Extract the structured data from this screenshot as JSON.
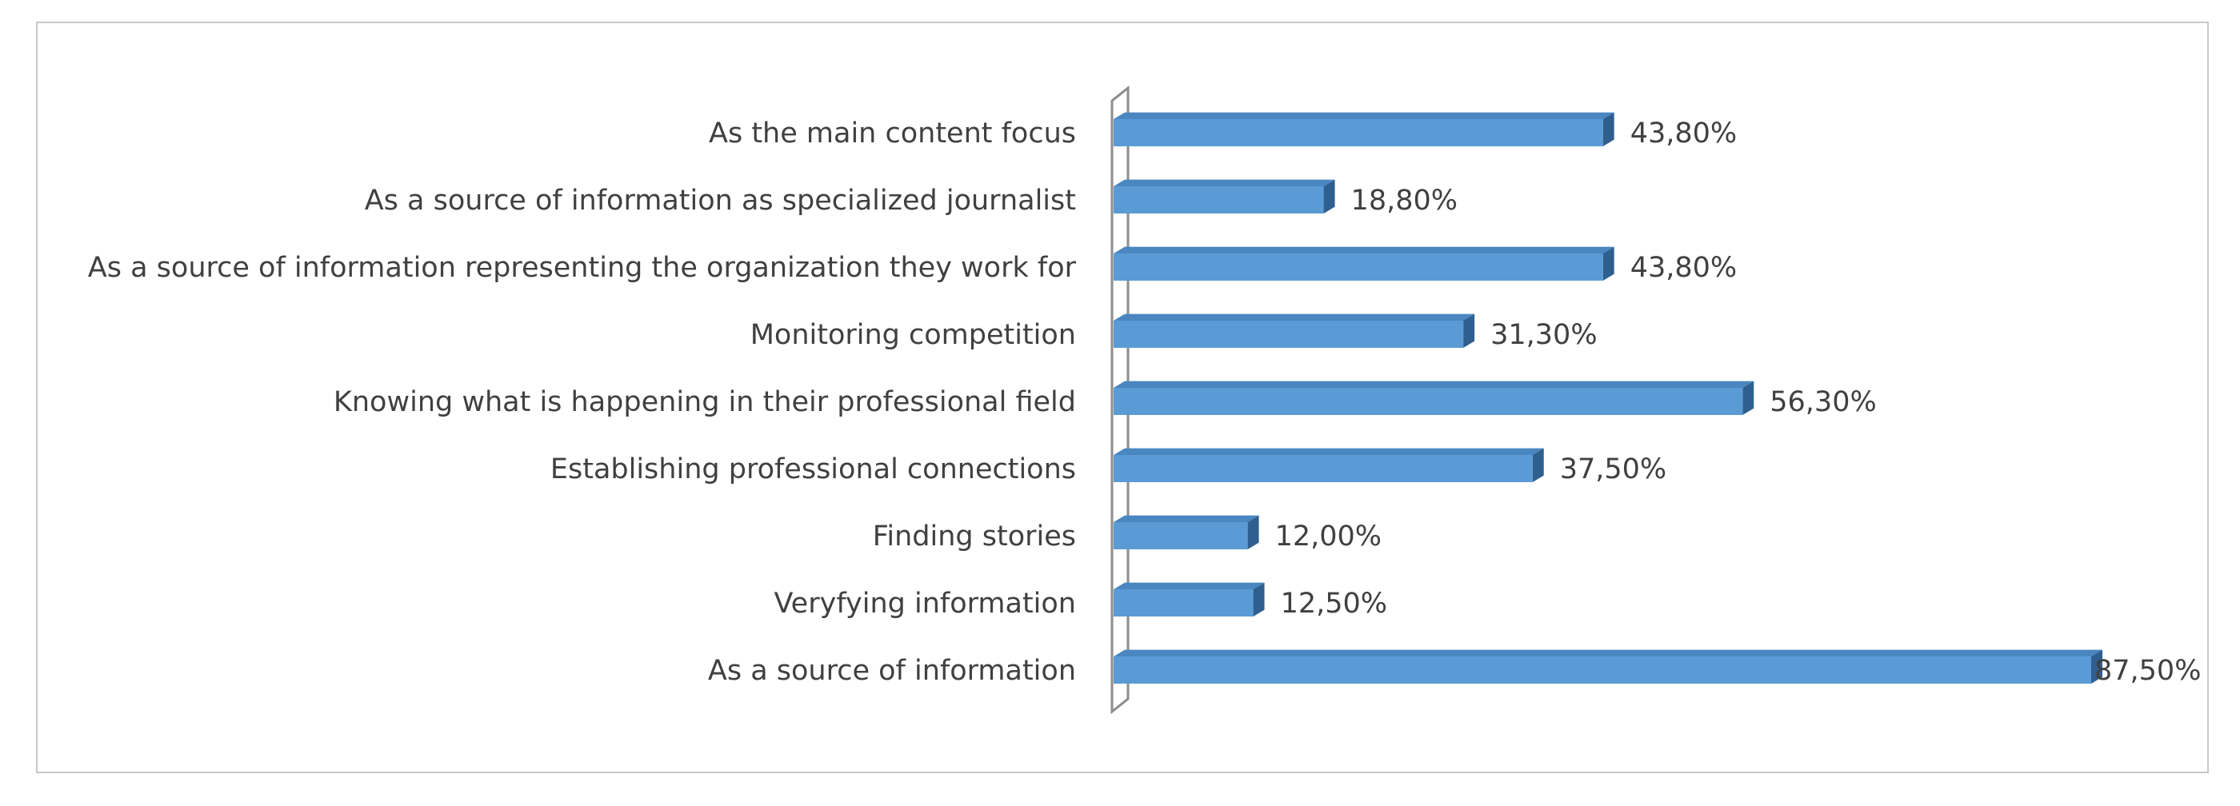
{
  "chart_data": {
    "type": "bar",
    "orientation": "horizontal",
    "style": "3d",
    "categories": [
      "As the main content focus",
      "As a source of information as specialized journalist",
      "As a source of information representing the organization they work for",
      "Monitoring competition",
      "Knowing what is happening in their professional field",
      "Establishing professional connections",
      "Finding stories",
      "Veryfying information",
      "As a source of information"
    ],
    "values": [
      43.8,
      18.8,
      43.8,
      31.3,
      56.3,
      37.5,
      12.0,
      12.5,
      87.5
    ],
    "value_labels": [
      "43,80%",
      "18,80%",
      "43,80%",
      "31,30%",
      "56,30%",
      "37,50%",
      "12,00%",
      "12,50%",
      "87,50%"
    ],
    "xlim": [
      0,
      87.5
    ],
    "grid": false,
    "legend": "none",
    "colors": {
      "bar_front": "#5b9bd5",
      "bar_top": "#4a86c0",
      "bar_side": "#2f5f8f",
      "wall": "#8c8c8c",
      "text": "#404040",
      "frame": "#c8c8c8"
    }
  }
}
